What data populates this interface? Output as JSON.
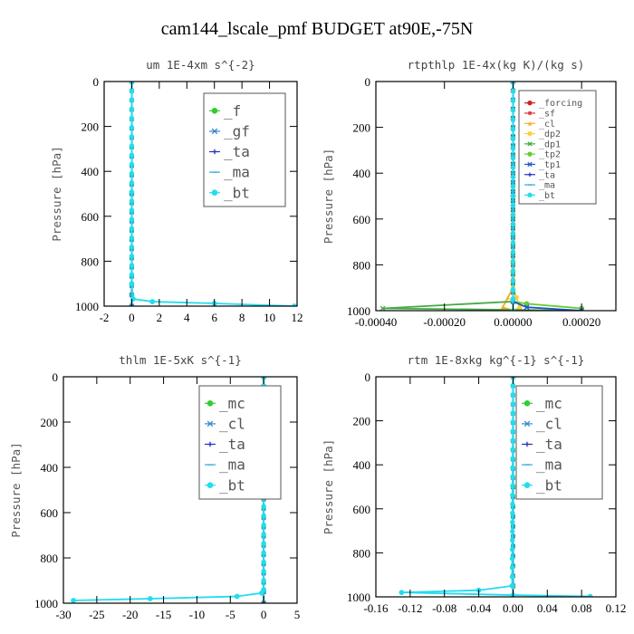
{
  "title": "cam144_lscale_pmf  BUDGET at90E,-75N",
  "chart_data": [
    {
      "type": "line",
      "title": "um  1E-4xm s^{-2}",
      "xlabel": "",
      "ylabel": "Pressure [hPa]",
      "xlim": [
        -2,
        12
      ],
      "ylim": [
        1000,
        0
      ],
      "y_reversed": true,
      "xticks": [
        -2,
        0,
        2,
        4,
        6,
        8,
        10,
        12
      ],
      "xtick_labels": [
        "-2",
        "0",
        "2",
        "4",
        "6",
        "8",
        "10",
        "12"
      ],
      "yticks": [
        0,
        200,
        400,
        600,
        800,
        1000
      ],
      "ytick_labels": [
        "0",
        "200",
        "400",
        "600",
        "800",
        "1000"
      ],
      "legend": "top-right",
      "legend_box": "wide",
      "legend_font": 16,
      "series": [
        {
          "name": "_f",
          "color": "#33cc33",
          "marker": "o",
          "style": "solid",
          "x": [
            0,
            0,
            0,
            0
          ],
          "y": [
            0,
            500,
            950,
            1000
          ]
        },
        {
          "name": "_gf",
          "color": "#3388cc",
          "marker": "x",
          "style": "solid",
          "x": [
            0,
            0,
            0,
            0
          ],
          "y": [
            0,
            500,
            950,
            1000
          ]
        },
        {
          "name": "_ta",
          "color": "#2233bb",
          "marker": "+",
          "style": "dotted",
          "x": [
            0,
            0,
            0.1,
            1.5,
            6,
            11.8
          ],
          "y": [
            0,
            900,
            968,
            980,
            988,
            1000
          ]
        },
        {
          "name": "_ma",
          "color": "#33aadd",
          "marker": "-",
          "style": "dotted",
          "x": [
            0,
            0,
            0,
            0
          ],
          "y": [
            0,
            500,
            950,
            1000
          ]
        },
        {
          "name": "_bt",
          "color": "#22ddee",
          "marker": "o",
          "style": "solid",
          "x": [
            0,
            0,
            0.1,
            1.5,
            6,
            11.8
          ],
          "y": [
            0,
            900,
            968,
            980,
            988,
            1000
          ]
        }
      ]
    },
    {
      "type": "line",
      "title": "rtpthlp  1E-4x(kg K)/(kg s)",
      "xlabel": "",
      "ylabel": "Pressure [hPa]",
      "xlim": [
        -0.0004,
        0.0003
      ],
      "ylim": [
        1000,
        0
      ],
      "y_reversed": true,
      "xticks": [
        -0.0004,
        -0.0002,
        0,
        0.0002
      ],
      "xtick_labels": [
        "-0.00040",
        "-0.00020",
        "0.00000",
        "0.00020"
      ],
      "yticks": [
        0,
        200,
        400,
        600,
        800,
        1000
      ],
      "ytick_labels": [
        "0",
        "200",
        "400",
        "600",
        "800",
        "1000"
      ],
      "legend": "top-right",
      "legend_box": "narrow",
      "legend_font": 10,
      "series": [
        {
          "name": "_forcing",
          "color": "#cc2222",
          "marker": "o",
          "style": "solid",
          "x": [
            0,
            0,
            0,
            0
          ],
          "y": [
            0,
            500,
            950,
            1000
          ]
        },
        {
          "name": "_sf",
          "color": "#dd3333",
          "marker": "*",
          "style": "solid",
          "x": [
            0,
            0,
            0,
            0
          ],
          "y": [
            0,
            500,
            950,
            1000
          ]
        },
        {
          "name": "_cl",
          "color": "#ffaa22",
          "marker": "^",
          "style": "solid",
          "x": [
            0,
            0,
            -3e-05,
            0
          ],
          "y": [
            0,
            900,
            985,
            1000
          ]
        },
        {
          "name": "_dp2",
          "color": "#ffcc33",
          "marker": "s",
          "style": "solid",
          "x": [
            0,
            0,
            2e-05,
            0
          ],
          "y": [
            0,
            900,
            985,
            1000
          ]
        },
        {
          "name": "_dp1",
          "color": "#44aa44",
          "marker": "x",
          "style": "solid",
          "x": [
            0,
            0,
            -0.00038,
            0.0002
          ],
          "y": [
            0,
            960,
            990,
            1000
          ]
        },
        {
          "name": "_tp2",
          "color": "#66cc33",
          "marker": "o",
          "style": "solid",
          "x": [
            0,
            0,
            4e-05,
            0.0002
          ],
          "y": [
            0,
            960,
            970,
            990
          ]
        },
        {
          "name": "_tp1",
          "color": "#2255cc",
          "marker": "x",
          "style": "solid",
          "x": [
            0,
            0,
            4e-05,
            0.0002
          ],
          "y": [
            0,
            960,
            985,
            1000
          ]
        },
        {
          "name": "_ta",
          "color": "#2233bb",
          "marker": "+",
          "style": "dotted",
          "x": [
            0,
            0,
            0,
            0
          ],
          "y": [
            0,
            500,
            950,
            1000
          ]
        },
        {
          "name": "_ma",
          "color": "#33aadd",
          "marker": "-",
          "style": "dotted",
          "x": [
            0,
            0,
            0,
            0
          ],
          "y": [
            0,
            500,
            950,
            1000
          ]
        },
        {
          "name": "_bt",
          "color": "#22ddee",
          "marker": "o",
          "style": "solid",
          "x": [
            0,
            0,
            0,
            0
          ],
          "y": [
            0,
            500,
            950,
            1000
          ]
        }
      ]
    },
    {
      "type": "line",
      "title": "thlm  1E-5xK s^{-1}",
      "xlabel": "",
      "ylabel": "Pressure [hPa]",
      "xlim": [
        -30,
        5
      ],
      "ylim": [
        1000,
        0
      ],
      "y_reversed": true,
      "xticks": [
        -30,
        -25,
        -20,
        -15,
        -10,
        -5,
        0,
        5
      ],
      "xtick_labels": [
        "-30",
        "-25",
        "-20",
        "-15",
        "-10",
        "-5",
        "0",
        "5"
      ],
      "yticks": [
        0,
        200,
        400,
        600,
        800,
        1000
      ],
      "ytick_labels": [
        "0",
        "200",
        "400",
        "600",
        "800",
        "1000"
      ],
      "legend": "top-right",
      "legend_box": "wide",
      "legend_font": 16,
      "series": [
        {
          "name": "_mc",
          "color": "#33cc33",
          "marker": "o",
          "style": "solid",
          "x": [
            0,
            0,
            0,
            0
          ],
          "y": [
            0,
            500,
            950,
            1000
          ]
        },
        {
          "name": "_cl",
          "color": "#3388cc",
          "marker": "x",
          "style": "solid",
          "x": [
            0,
            0,
            0,
            0
          ],
          "y": [
            0,
            500,
            950,
            1000
          ]
        },
        {
          "name": "_ta",
          "color": "#2233bb",
          "marker": "+",
          "style": "dotted",
          "x": [
            0,
            0,
            -0.3,
            -4,
            -17,
            -28.5
          ],
          "y": [
            0,
            940,
            955,
            970,
            980,
            988
          ]
        },
        {
          "name": "_ma",
          "color": "#33aadd",
          "marker": "-",
          "style": "dotted",
          "x": [
            0,
            0,
            0,
            0
          ],
          "y": [
            0,
            500,
            950,
            1000
          ]
        },
        {
          "name": "_bt",
          "color": "#22ddee",
          "marker": "o",
          "style": "solid",
          "x": [
            0,
            0,
            -0.3,
            -4,
            -17,
            -28.5
          ],
          "y": [
            0,
            940,
            955,
            970,
            980,
            988
          ]
        }
      ]
    },
    {
      "type": "line",
      "title": "rtm  1E-8xkg kg^{-1} s^{-1}",
      "xlabel": "",
      "ylabel": "Pressure [hPa]",
      "xlim": [
        -0.16,
        0.12
      ],
      "ylim": [
        1000,
        0
      ],
      "y_reversed": true,
      "xticks": [
        -0.16,
        -0.12,
        -0.08,
        -0.04,
        0,
        0.04,
        0.08,
        0.12
      ],
      "xtick_labels": [
        "-0.16",
        "-0.12",
        "-0.08",
        "-0.04",
        "0.00",
        "0.04",
        "0.08",
        "0.12"
      ],
      "yticks": [
        0,
        200,
        400,
        600,
        800,
        1000
      ],
      "ytick_labels": [
        "0",
        "200",
        "400",
        "600",
        "800",
        "1000"
      ],
      "legend": "top-right",
      "legend_box": "wide",
      "legend_font": 16,
      "series": [
        {
          "name": "_mc",
          "color": "#33cc33",
          "marker": "o",
          "style": "solid",
          "x": [
            0,
            0,
            0,
            0
          ],
          "y": [
            0,
            500,
            950,
            1000
          ]
        },
        {
          "name": "_cl",
          "color": "#3388cc",
          "marker": "x",
          "style": "solid",
          "x": [
            0,
            0,
            0,
            0
          ],
          "y": [
            0,
            500,
            950,
            1000
          ]
        },
        {
          "name": "_ta",
          "color": "#2233bb",
          "marker": "+",
          "style": "dotted",
          "x": [
            0,
            -0.001,
            -0.04,
            -0.13,
            0,
            0.09
          ],
          "y": [
            0,
            950,
            970,
            980,
            992,
            998
          ]
        },
        {
          "name": "_ma",
          "color": "#33aadd",
          "marker": "-",
          "style": "dotted",
          "x": [
            0,
            0,
            0,
            0
          ],
          "y": [
            0,
            500,
            950,
            1000
          ]
        },
        {
          "name": "_bt",
          "color": "#22ddee",
          "marker": "o",
          "style": "solid",
          "x": [
            0,
            -0.001,
            -0.04,
            -0.13,
            0,
            0.09
          ],
          "y": [
            0,
            950,
            970,
            980,
            992,
            998
          ]
        }
      ]
    }
  ]
}
